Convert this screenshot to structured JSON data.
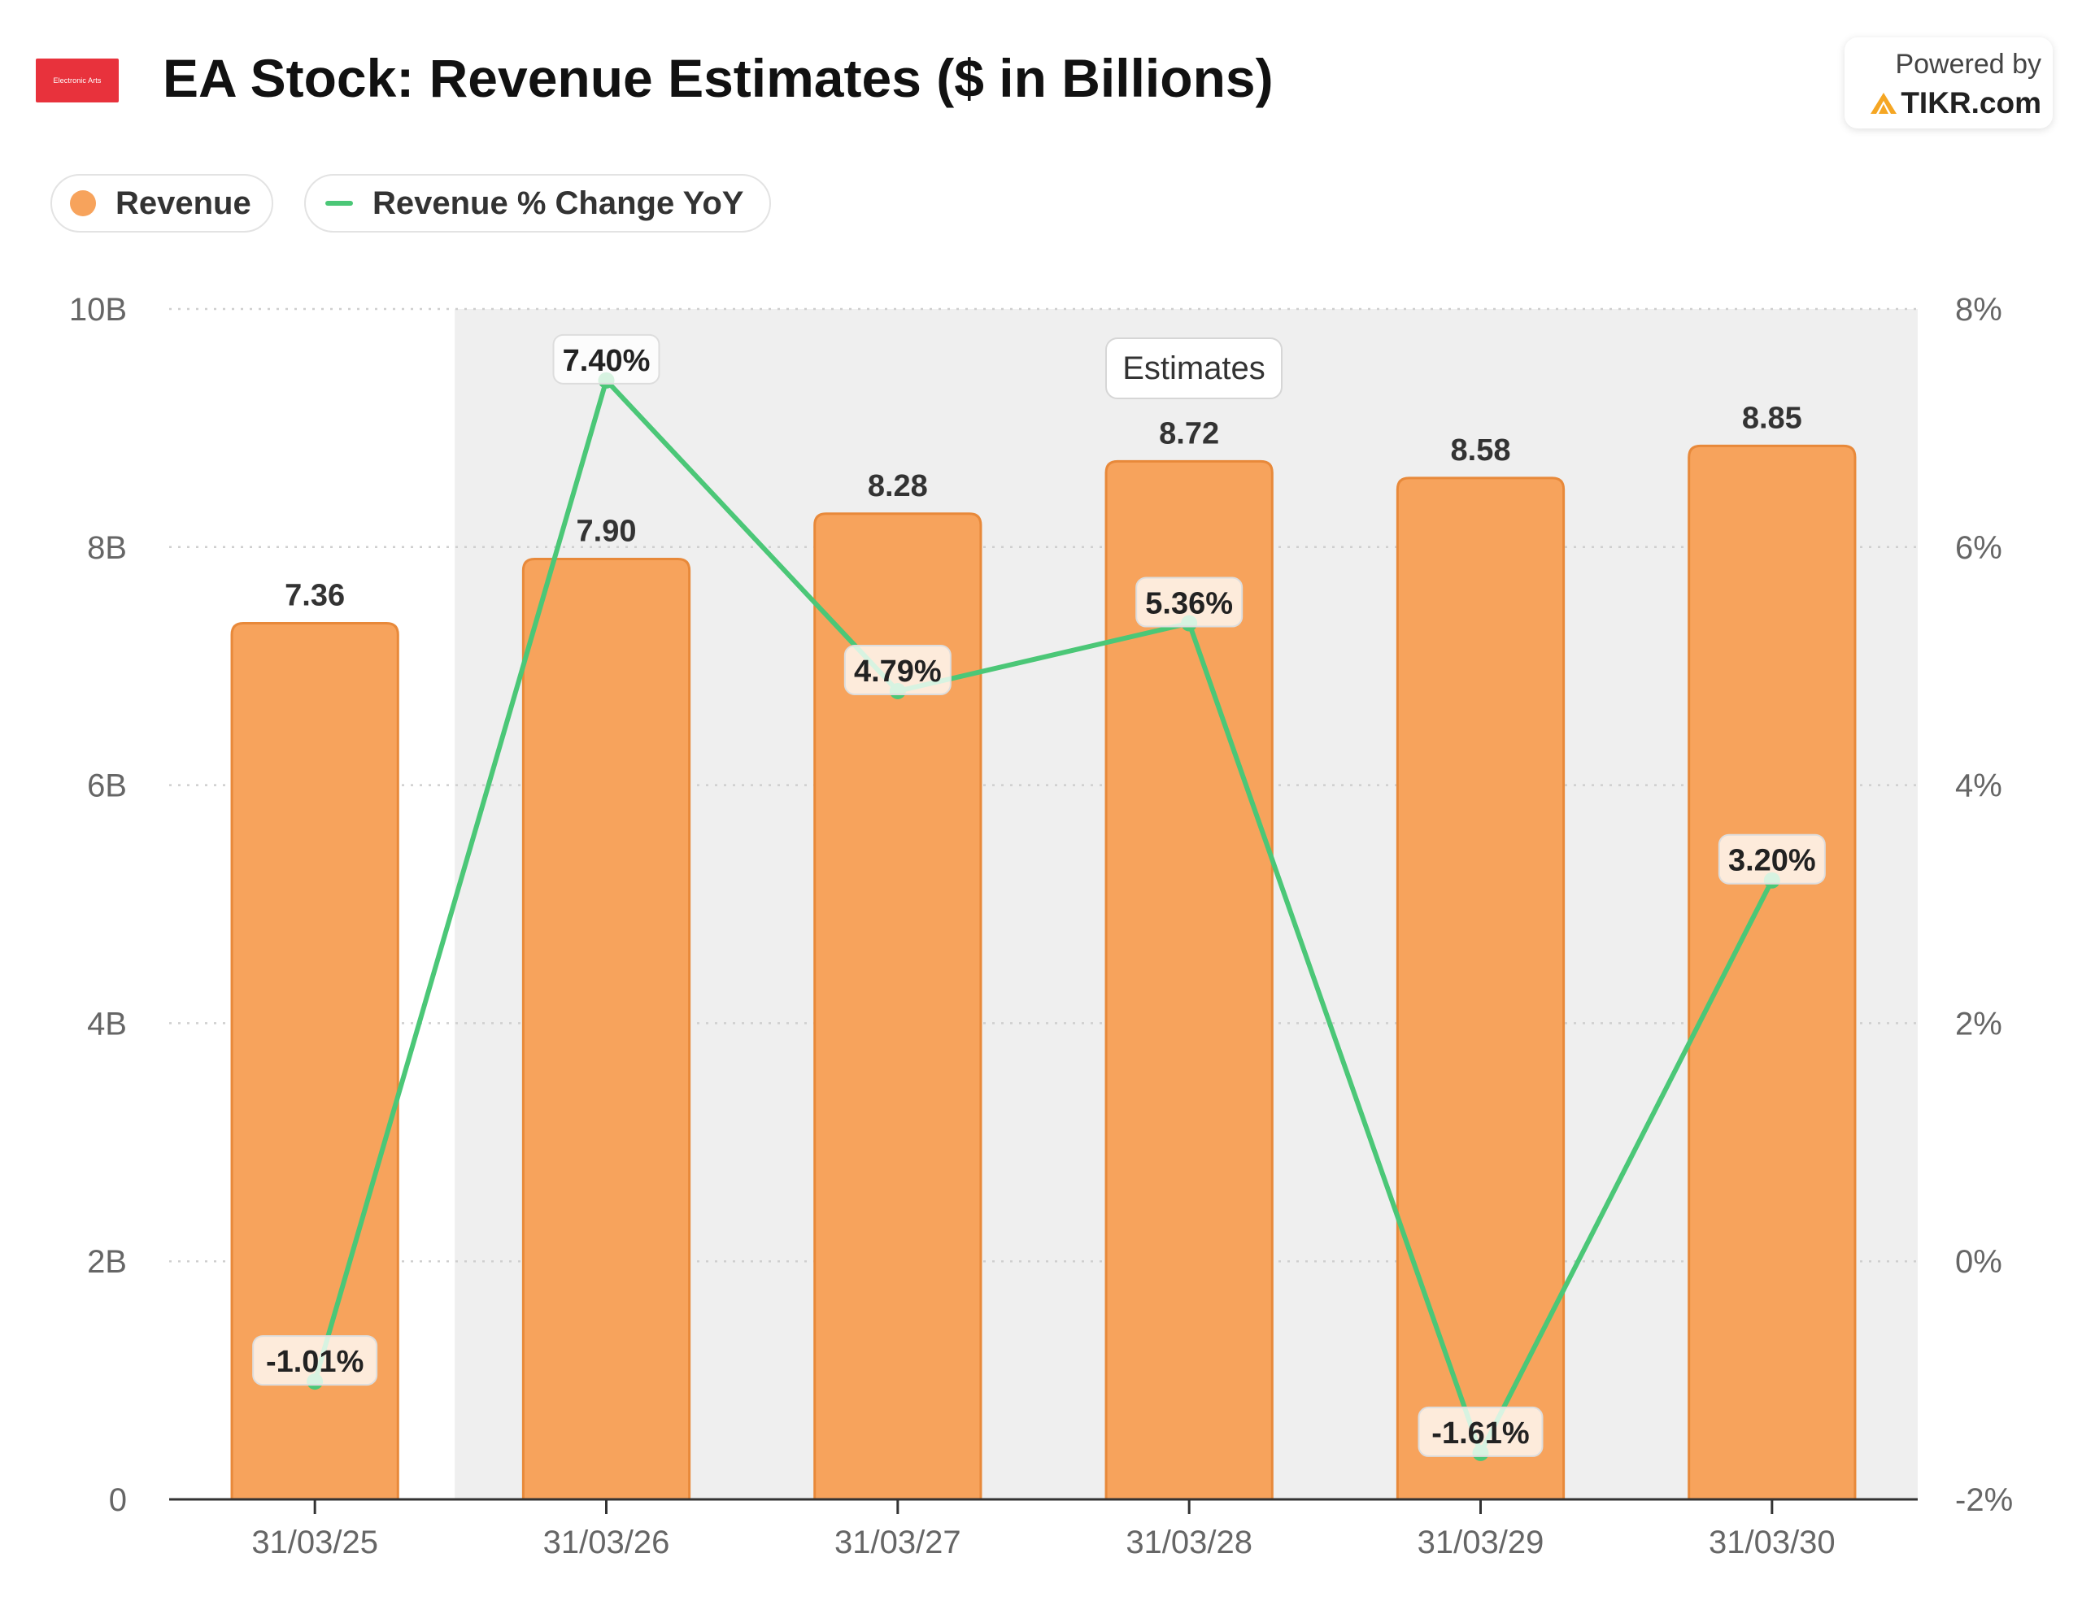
{
  "header": {
    "logo_text": "Electronic Arts",
    "title": "EA Stock: Revenue Estimates ($ in Billions)",
    "powered_by": "Powered by",
    "brand": "TIKR.com"
  },
  "legend": {
    "revenue": "Revenue",
    "yoy": "Revenue % Change YoY"
  },
  "colors": {
    "bar": "#f7a35c",
    "bar_stroke": "#e8893a",
    "line": "#4bc777",
    "estimates_bg": "#efefef"
  },
  "chart_data": {
    "type": "bar",
    "categories": [
      "31/03/25",
      "31/03/26",
      "31/03/27",
      "31/03/28",
      "31/03/29",
      "31/03/30"
    ],
    "series": [
      {
        "name": "Revenue",
        "type": "bar",
        "axis": "left",
        "values": [
          7.36,
          7.9,
          8.28,
          8.72,
          8.58,
          8.85
        ],
        "labels": [
          "7.36",
          "7.90",
          "8.28",
          "8.72",
          "8.58",
          "8.85"
        ]
      },
      {
        "name": "Revenue % Change YoY",
        "type": "line",
        "axis": "right",
        "values": [
          -1.01,
          7.4,
          4.79,
          5.36,
          -1.61,
          3.2
        ],
        "labels": [
          "-1.01%",
          "7.40%",
          "4.79%",
          "5.36%",
          "-1.61%",
          "3.20%"
        ]
      }
    ],
    "y_left": {
      "ylim": [
        0,
        10
      ],
      "ticks": [
        0,
        2,
        4,
        6,
        8,
        10
      ],
      "tick_labels": [
        "0",
        "2B",
        "4B",
        "6B",
        "8B",
        "10B"
      ]
    },
    "y_right": {
      "ylim": [
        -2,
        8
      ],
      "ticks": [
        -2,
        0,
        2,
        4,
        6,
        8
      ],
      "tick_labels": [
        "-2%",
        "0%",
        "2%",
        "4%",
        "6%",
        "8%"
      ]
    },
    "estimates_label": "Estimates",
    "estimates_start_category": "31/03/26",
    "grid": true
  }
}
